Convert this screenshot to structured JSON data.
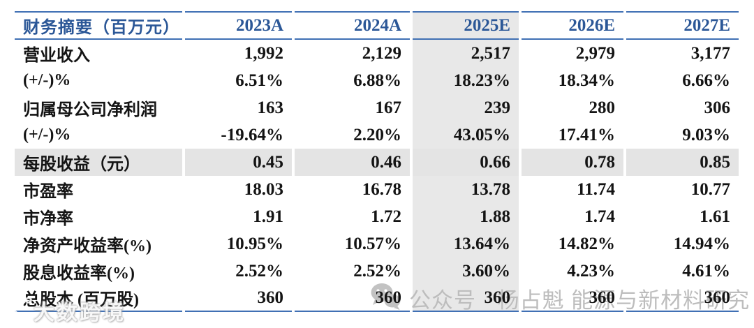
{
  "table": {
    "header_label": "财务摘要（百万元）",
    "year_columns": [
      "2023A",
      "2024A",
      "2025E",
      "2026E",
      "2027E"
    ],
    "highlight_column": "2025E",
    "highlight_column_index": 2,
    "rows": [
      {
        "label": "营业收入",
        "values": [
          "1,992",
          "2,129",
          "2,517",
          "2,979",
          "3,177"
        ],
        "highlight": false
      },
      {
        "label": "(+/-)%",
        "values": [
          "6.51%",
          "6.88%",
          "18.23%",
          "18.34%",
          "6.66%"
        ],
        "highlight": false
      },
      {
        "label": "归属母公司净利润",
        "values": [
          "163",
          "167",
          "239",
          "280",
          "306"
        ],
        "highlight": false
      },
      {
        "label": "(+/-)%",
        "values": [
          "-19.64%",
          "2.20%",
          "43.05%",
          "17.41%",
          "9.03%"
        ],
        "highlight": false
      },
      {
        "label": "每股收益（元）",
        "values": [
          "0.45",
          "0.46",
          "0.66",
          "0.78",
          "0.85"
        ],
        "highlight": true
      },
      {
        "label": "市盈率",
        "values": [
          "18.03",
          "16.78",
          "13.78",
          "11.74",
          "10.77"
        ],
        "highlight": false
      },
      {
        "label": "市净率",
        "values": [
          "1.91",
          "1.72",
          "1.88",
          "1.74",
          "1.61"
        ],
        "highlight": false
      },
      {
        "label": "净资产收益率(%)",
        "values": [
          "10.95%",
          "10.57%",
          "13.64%",
          "14.82%",
          "14.94%"
        ],
        "highlight": false
      },
      {
        "label": "股息收益率(%)",
        "values": [
          "2.52%",
          "2.52%",
          "3.60%",
          "4.23%",
          "4.61%"
        ],
        "highlight": false
      },
      {
        "label": "总股本 (百万股)",
        "values": [
          "360",
          "360",
          "360",
          "360",
          "360"
        ],
        "highlight": false
      }
    ]
  },
  "watermarks": {
    "center": {
      "icon": "wechat-icon",
      "text": "公众号 · 杨占魁 能源与新材料研究"
    },
    "bottom_left": {
      "icon": "brand-logo-icon",
      "text": "大数跨境"
    }
  },
  "colors": {
    "header_blue": "#2B5797",
    "line_blue": "#4070B4",
    "column_highlight": "#E8E8E8",
    "row_highlight": "#E4E4E4",
    "watermark_gray": "#BDBDBD"
  }
}
